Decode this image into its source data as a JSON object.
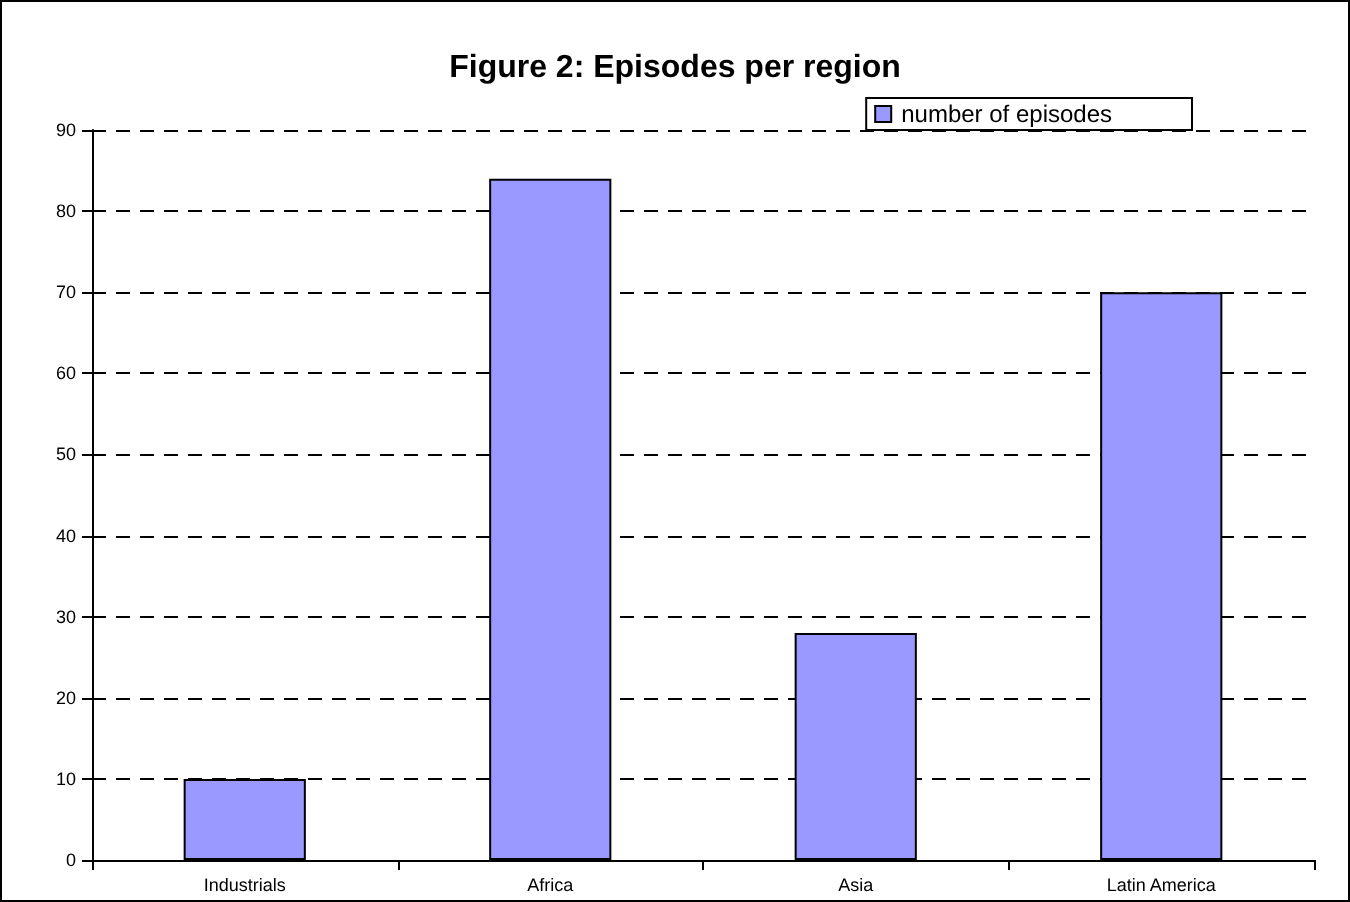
{
  "chart_data": {
    "type": "bar",
    "title": "Figure 2: Episodes per region",
    "categories": [
      "Industrials",
      "Africa",
      "Asia",
      "Latin America"
    ],
    "series": [
      {
        "name": "number of episodes",
        "color": "#9999ff",
        "values": [
          10,
          84,
          28,
          70
        ]
      }
    ],
    "ylim": [
      0,
      90
    ],
    "yticks": [
      0,
      10,
      20,
      30,
      40,
      50,
      60,
      70,
      80,
      90
    ],
    "grid": "y",
    "legend": "top right"
  }
}
